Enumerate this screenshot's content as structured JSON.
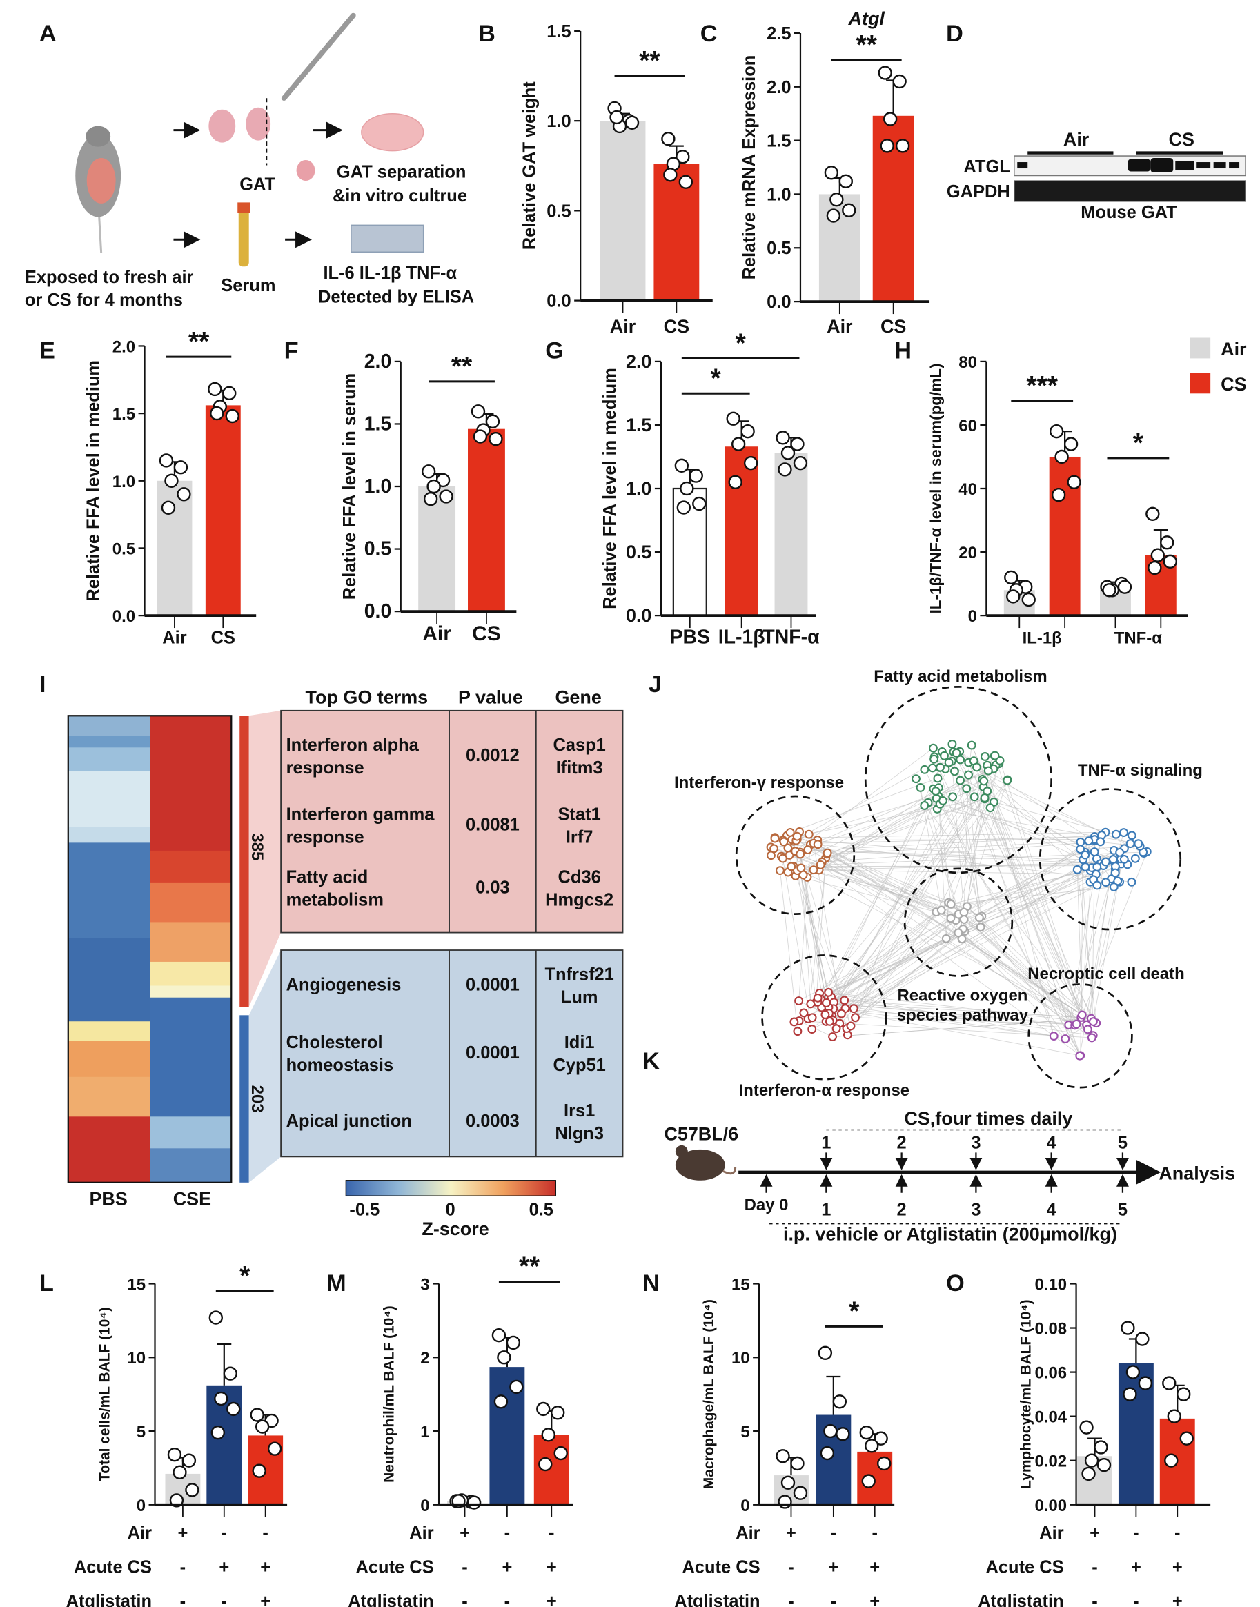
{
  "colors": {
    "air_gray": "#d9d9d9",
    "cs_red": "#e3301b",
    "acute_blue": "#1f3f7a",
    "white": "#ffffff"
  },
  "panel_labels": [
    "A",
    "B",
    "C",
    "D",
    "E",
    "F",
    "G",
    "H",
    "I",
    "J",
    "K",
    "L",
    "M",
    "N",
    "O"
  ],
  "panel_A": {
    "gat_label": "GAT",
    "separation_line1": "GAT separation",
    "separation_line2": "&in vitro cultrue",
    "exposure_line1": "Exposed to fresh air",
    "exposure_line2": "or CS for 4 months",
    "serum_label": "Serum",
    "elisa_line1": "IL-6 IL-1β TNF-α",
    "elisa_line2": "Detected by ELISA"
  },
  "panel_D": {
    "group_labels": [
      "Air",
      "CS"
    ],
    "row_labels": [
      "ATGL",
      "GAPDH"
    ],
    "caption": "Mouse GAT"
  },
  "legend_H": [
    {
      "label": "Air",
      "color": "#d9d9d9"
    },
    {
      "label": "CS",
      "color": "#e3301b"
    }
  ],
  "chart_data": [
    {
      "id": "B",
      "type": "bar",
      "title": "",
      "ylabel": "Relative GAT weight",
      "ylim": [
        0,
        1.5
      ],
      "yticks": [
        0,
        0.5,
        1.0,
        1.5
      ],
      "ytick_labels": [
        "0.0",
        "0.5",
        "1.0",
        "1.5"
      ],
      "categories": [
        "Air",
        "CS"
      ],
      "values": [
        1.0,
        0.76
      ],
      "sd": [
        0.04,
        0.1
      ],
      "points": [
        [
          1.07,
          1.0,
          0.97,
          0.99,
          1.02
        ],
        [
          0.9,
          0.8,
          0.76,
          0.66,
          0.7
        ]
      ],
      "colors": [
        "#d9d9d9",
        "#e3301b"
      ],
      "significance": [
        {
          "from": 0,
          "to": 1,
          "label": "**"
        }
      ]
    },
    {
      "id": "C",
      "type": "bar",
      "title": "Atgl",
      "ylabel": "Relative mRNA Expression",
      "ylim": [
        0,
        2.5
      ],
      "yticks": [
        0,
        0.5,
        1.0,
        1.5,
        2.0,
        2.5
      ],
      "ytick_labels": [
        "0.0",
        "0.5",
        "1.0",
        "1.5",
        "2.0",
        "2.5"
      ],
      "categories": [
        "Air",
        "CS"
      ],
      "values": [
        1.0,
        1.73
      ],
      "sd": [
        0.15,
        0.33
      ],
      "points": [
        [
          1.2,
          1.12,
          0.95,
          0.85,
          0.8
        ],
        [
          2.13,
          2.05,
          1.7,
          1.45,
          1.45
        ]
      ],
      "colors": [
        "#d9d9d9",
        "#e3301b"
      ],
      "significance": [
        {
          "from": 0,
          "to": 1,
          "label": "**"
        }
      ]
    },
    {
      "id": "E",
      "type": "bar",
      "title": "",
      "ylabel": "Relative FFA level in medium",
      "ylim": [
        0,
        2.0
      ],
      "yticks": [
        0,
        0.5,
        1.0,
        1.5,
        2.0
      ],
      "ytick_labels": [
        "0.0",
        "0.5",
        "1.0",
        "1.5",
        "2.0"
      ],
      "categories": [
        "Air",
        "CS"
      ],
      "values": [
        1.0,
        1.56
      ],
      "sd": [
        0.14,
        0.11
      ],
      "points": [
        [
          1.15,
          1.1,
          1.0,
          0.9,
          0.8
        ],
        [
          1.68,
          1.65,
          1.55,
          1.48,
          1.5
        ]
      ],
      "colors": [
        "#d9d9d9",
        "#e3301b"
      ],
      "significance": [
        {
          "from": 0,
          "to": 1,
          "label": "**"
        }
      ]
    },
    {
      "id": "F",
      "type": "bar",
      "title": "",
      "ylabel": "Relative FFA level in serum",
      "ylim": [
        0,
        2.0
      ],
      "yticks": [
        0,
        0.5,
        1.0,
        1.5,
        2.0
      ],
      "ytick_labels": [
        "0.0",
        "0.5",
        "1.0",
        "1.5",
        "2.0"
      ],
      "categories": [
        "Air",
        "CS"
      ],
      "values": [
        1.0,
        1.46
      ],
      "sd": [
        0.1,
        0.12
      ],
      "points": [
        [
          1.12,
          1.05,
          1.0,
          0.92,
          0.9
        ],
        [
          1.6,
          1.52,
          1.45,
          1.38,
          1.4
        ]
      ],
      "colors": [
        "#d9d9d9",
        "#e3301b"
      ],
      "significance": [
        {
          "from": 0,
          "to": 1,
          "label": "**"
        }
      ]
    },
    {
      "id": "G",
      "type": "bar",
      "title": "",
      "ylabel": "Relative FFA level in medium",
      "ylim": [
        0,
        2.0
      ],
      "yticks": [
        0,
        0.5,
        1.0,
        1.5,
        2.0
      ],
      "ytick_labels": [
        "0.0",
        "0.5",
        "1.0",
        "1.5",
        "2.0"
      ],
      "categories": [
        "PBS",
        "IL-1β",
        "TNF-α"
      ],
      "values": [
        1.0,
        1.33,
        1.28
      ],
      "sd": [
        0.15,
        0.2,
        0.12
      ],
      "points": [
        [
          1.18,
          1.1,
          1.0,
          0.88,
          0.85
        ],
        [
          1.55,
          1.45,
          1.35,
          1.2,
          1.05
        ],
        [
          1.4,
          1.35,
          1.28,
          1.2,
          1.15
        ]
      ],
      "colors": [
        "#ffffff",
        "#e3301b",
        "#d9d9d9"
      ],
      "significance": [
        {
          "from": 0,
          "to": 1,
          "label": "*"
        },
        {
          "from": 0,
          "to": 2,
          "label": "*"
        }
      ]
    },
    {
      "id": "H",
      "type": "grouped_bar",
      "title": "",
      "ylabel": "IL-1β/TNF-α level in serum(pg/mL)",
      "ylim": [
        0,
        80
      ],
      "yticks": [
        0,
        20,
        40,
        60,
        80
      ],
      "ytick_labels": [
        "0",
        "20",
        "40",
        "60",
        "80"
      ],
      "categories": [
        "IL-1β",
        "TNF-α"
      ],
      "legend": "top-right",
      "series": [
        {
          "name": "Air",
          "color": "#d9d9d9",
          "values": [
            8,
            8.5
          ],
          "sd": [
            3,
            2
          ],
          "points": [
            [
              12,
              9,
              8,
              5,
              6
            ],
            [
              9,
              10,
              8,
              9,
              8
            ]
          ]
        },
        {
          "name": "CS",
          "color": "#e3301b",
          "values": [
            50,
            19
          ],
          "sd": [
            8,
            8
          ],
          "points": [
            [
              58,
              54,
              50,
              42,
              38
            ],
            [
              32,
              23,
              19,
              17,
              15
            ]
          ]
        }
      ],
      "significance": [
        {
          "group": 0,
          "label": "***"
        },
        {
          "group": 1,
          "label": "*"
        }
      ]
    },
    {
      "id": "L",
      "type": "bar",
      "title": "",
      "ylabel": "Total cells/mL BALF (10⁴)",
      "ylim": [
        0,
        15
      ],
      "yticks": [
        0,
        5,
        10,
        15
      ],
      "ytick_labels": [
        "0",
        "5",
        "10",
        "15"
      ],
      "categories": [
        "Air",
        "Acute CS",
        "Acute CS + Atglistatin"
      ],
      "values": [
        2.1,
        8.1,
        4.7
      ],
      "sd": [
        1.1,
        2.8,
        1.4
      ],
      "points": [
        [
          3.4,
          3.0,
          2.2,
          1.0,
          0.3
        ],
        [
          12.7,
          8.9,
          7.2,
          6.5,
          4.9
        ],
        [
          6.1,
          5.7,
          5.3,
          3.8,
          2.3
        ]
      ],
      "colors": [
        "#d9d9d9",
        "#1f3f7a",
        "#e3301b"
      ],
      "significance": [
        {
          "from": 1,
          "to": 2,
          "label": "*"
        }
      ]
    },
    {
      "id": "M",
      "type": "bar",
      "title": "",
      "ylabel": "Neutrophil/mL BALF (10⁴)",
      "ylim": [
        0,
        3
      ],
      "yticks": [
        0,
        1,
        2,
        3
      ],
      "ytick_labels": [
        "0",
        "1",
        "2",
        "3"
      ],
      "categories": [
        "Air",
        "Acute CS",
        "Acute CS + Atglistatin"
      ],
      "values": [
        0.05,
        1.87,
        0.95
      ],
      "sd": [
        0.02,
        0.4,
        0.32
      ],
      "points": [
        [
          0.05,
          0.04,
          0.06,
          0.03,
          0.05
        ],
        [
          2.3,
          2.2,
          2.0,
          1.6,
          1.4
        ],
        [
          1.3,
          1.25,
          0.95,
          0.7,
          0.55
        ]
      ],
      "colors": [
        "#d9d9d9",
        "#1f3f7a",
        "#e3301b"
      ],
      "significance": [
        {
          "from": 1,
          "to": 2,
          "label": "**"
        }
      ]
    },
    {
      "id": "N",
      "type": "bar",
      "title": "",
      "ylabel": "Macrophage/mL BALF (10⁴)",
      "ylim": [
        0,
        15
      ],
      "yticks": [
        0,
        5,
        10,
        15
      ],
      "ytick_labels": [
        "0",
        "5",
        "10",
        "15"
      ],
      "categories": [
        "Air",
        "Acute CS",
        "Acute CS + Atglistatin"
      ],
      "values": [
        2.0,
        6.1,
        3.6
      ],
      "sd": [
        1.2,
        2.6,
        1.2
      ],
      "points": [
        [
          3.3,
          2.8,
          1.5,
          0.8,
          0.2
        ],
        [
          10.3,
          7.0,
          5.0,
          4.8,
          3.5
        ],
        [
          4.9,
          4.5,
          4.0,
          2.8,
          1.6
        ]
      ],
      "colors": [
        "#d9d9d9",
        "#1f3f7a",
        "#e3301b"
      ],
      "significance": [
        {
          "from": 1,
          "to": 2,
          "label": "*"
        }
      ]
    },
    {
      "id": "O",
      "type": "bar",
      "title": "",
      "ylabel": "Lymphocyte/mL BALF (10⁴)",
      "ylim": [
        0,
        0.1
      ],
      "yticks": [
        0,
        0.02,
        0.04,
        0.06,
        0.08,
        0.1
      ],
      "ytick_labels": [
        "0.00",
        "0.02",
        "0.04",
        "0.06",
        "0.08",
        "0.10"
      ],
      "categories": [
        "Air",
        "Acute CS",
        "Acute CS + Atglistatin"
      ],
      "values": [
        0.022,
        0.064,
        0.039
      ],
      "sd": [
        0.008,
        0.011,
        0.015
      ],
      "points": [
        [
          0.035,
          0.026,
          0.02,
          0.018,
          0.014
        ],
        [
          0.08,
          0.075,
          0.06,
          0.055,
          0.05
        ],
        [
          0.055,
          0.05,
          0.04,
          0.03,
          0.02
        ]
      ],
      "colors": [
        "#d9d9d9",
        "#1f3f7a",
        "#e3301b"
      ],
      "significance": []
    }
  ],
  "conditions": {
    "rows": [
      {
        "label": "Air",
        "signs": [
          "+",
          "-",
          "-"
        ]
      },
      {
        "label": "Acute CS",
        "signs": [
          "-",
          "+",
          "+"
        ]
      },
      {
        "label": "Atglistatin",
        "signs": [
          "-",
          "-",
          "+"
        ]
      }
    ]
  },
  "panel_I": {
    "column_labels": [
      "PBS",
      "CSE"
    ],
    "cluster_counts": [
      "385",
      "203"
    ],
    "colorbar": {
      "ticks": [
        "-0.5",
        "0",
        "0.5"
      ],
      "label": "Z-score",
      "colors": [
        "#3a66ad",
        "#8fb5d6",
        "#f6f2c4",
        "#f0a15e",
        "#c8302a"
      ]
    },
    "heatmap": {
      "PBS": [
        {
          "color": "#8fb3d3",
          "rows": 25
        },
        {
          "color": "#6e9cc8",
          "rows": 15
        },
        {
          "color": "#9cc0dc",
          "rows": 30
        },
        {
          "color": "#d8e8f0",
          "rows": 70
        },
        {
          "color": "#c5dbe9",
          "rows": 20
        },
        {
          "color": "#4a7ab5",
          "rows": 120
        },
        {
          "color": "#3e6dac",
          "rows": 105
        },
        {
          "color": "#f5e7a0",
          "rows": 25
        },
        {
          "color": "#ee9f5e",
          "rows": 45
        },
        {
          "color": "#f0ad6e",
          "rows": 50
        },
        {
          "color": "#c8302a",
          "rows": 83
        }
      ],
      "CSE": [
        {
          "color": "#c9322a",
          "rows": 170
        },
        {
          "color": "#d8452e",
          "rows": 40
        },
        {
          "color": "#e8774a",
          "rows": 50
        },
        {
          "color": "#eea166",
          "rows": 50
        },
        {
          "color": "#f7e8a7",
          "rows": 30
        },
        {
          "color": "#f6f3cc",
          "rows": 15
        },
        {
          "color": "#3f6fb0",
          "rows": 150
        },
        {
          "color": "#9dc0dc",
          "rows": 40
        },
        {
          "color": "#5a87bd",
          "rows": 43
        }
      ]
    },
    "table": {
      "headers": [
        "Top GO terms",
        "P value",
        "Gene"
      ],
      "enriched": [
        {
          "term": [
            "Interferon alpha",
            "response"
          ],
          "p": "0.0012",
          "genes": [
            "Casp1",
            "Ifitm3"
          ]
        },
        {
          "term": [
            "Interferon gamma",
            "response"
          ],
          "p": "0.0081",
          "genes": [
            "Stat1",
            "Irf7"
          ]
        },
        {
          "term": [
            "Fatty acid",
            "metabolism"
          ],
          "p": "0.03",
          "genes": [
            "Cd36",
            "Hmgcs2"
          ]
        }
      ],
      "depleted": [
        {
          "term": [
            "Angiogenesis"
          ],
          "p": "0.0001",
          "genes": [
            "Tnfrsf21",
            "Lum"
          ]
        },
        {
          "term": [
            "Cholesterol",
            "homeostasis"
          ],
          "p": "0.0001",
          "genes": [
            "Idi1",
            "Cyp51"
          ]
        },
        {
          "term": [
            "Apical junction"
          ],
          "p": "0.0003",
          "genes": [
            "Irs1",
            "Nlgn3"
          ]
        }
      ],
      "enriched_color": "#ecc2c0",
      "depleted_color": "#c3d3e3"
    }
  },
  "panel_J": {
    "clusters": [
      {
        "label": "Fatty acid metabolism",
        "color": "#3d8b5f",
        "nodes": 60
      },
      {
        "label": "Interferon-γ response",
        "color": "#b8683c",
        "nodes": 45
      },
      {
        "label": "TNF-α signaling",
        "color": "#3c7bb8",
        "nodes": 55
      },
      {
        "label": "Reactive oxygen",
        "label2": "species pathway",
        "color": "#a9a9a9",
        "nodes": 18
      },
      {
        "label": "Interferon-α response",
        "color": "#b2393a",
        "nodes": 40
      },
      {
        "label": "Necroptic cell death",
        "color": "#9b4fab",
        "nodes": 16
      }
    ]
  },
  "panel_K": {
    "strain": "C57BL/6",
    "cs_label": "CS,four times daily",
    "cs_days": [
      "1",
      "2",
      "3",
      "4",
      "5"
    ],
    "day0_label": "Day 0",
    "ip_days": [
      "1",
      "2",
      "3",
      "4",
      "5"
    ],
    "ip_label": "i.p. vehicle or Atglistatin (200μmol/kg)",
    "end_label": "Analysis"
  }
}
